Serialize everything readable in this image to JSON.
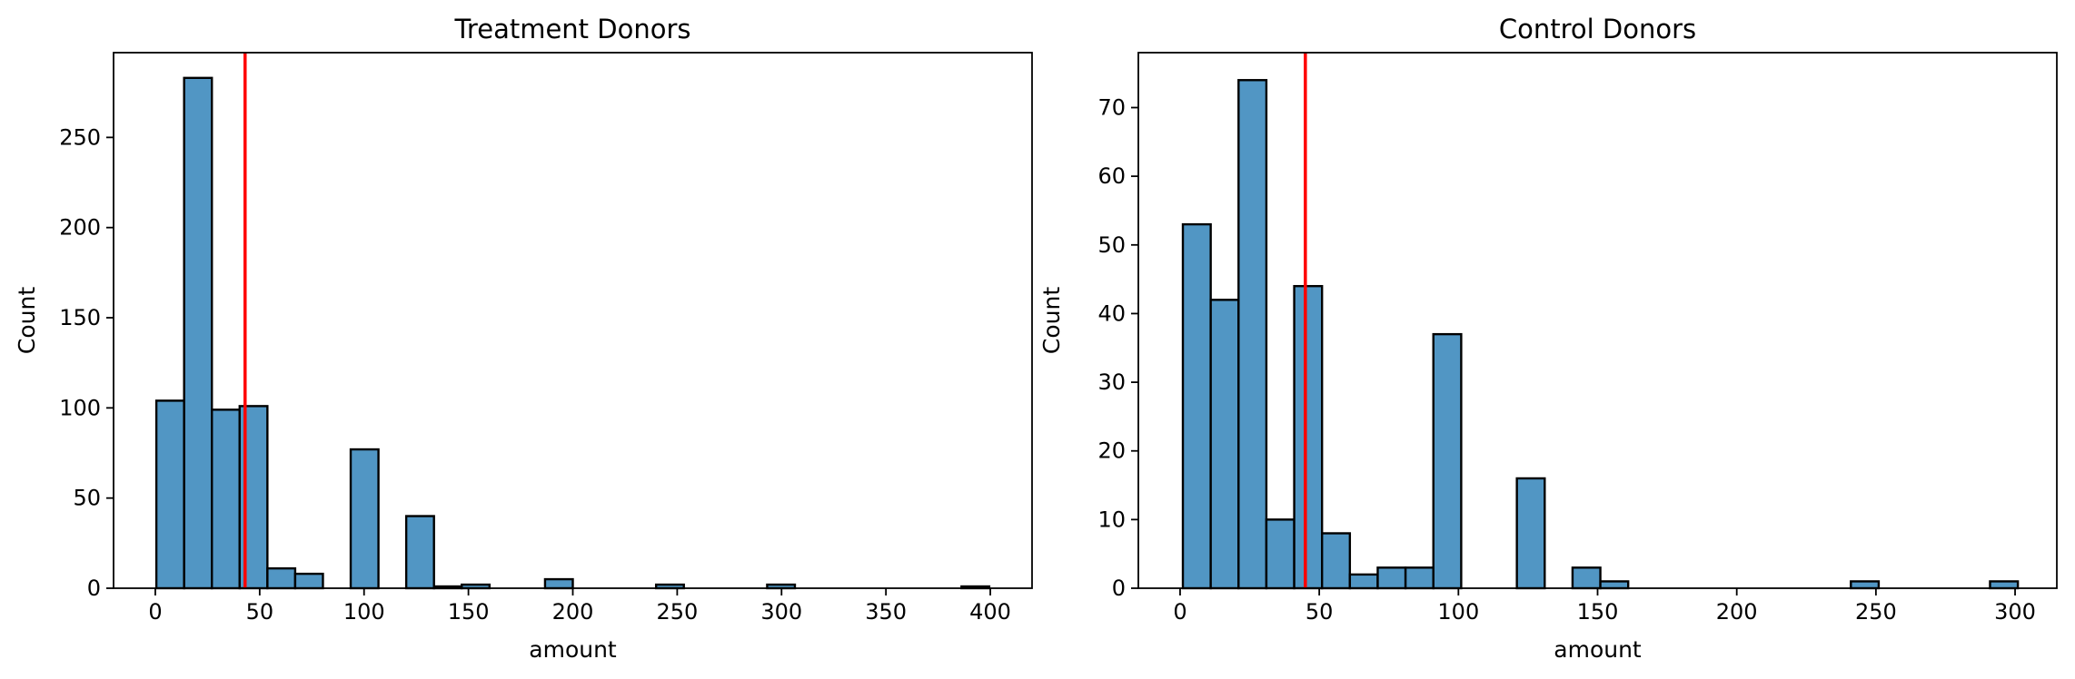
{
  "chart_data": [
    {
      "type": "bar",
      "title": "Treatment Donors",
      "xlabel": "amount",
      "ylabel": "Count",
      "xlim": [
        -20,
        420
      ],
      "ylim": [
        0,
        297
      ],
      "xticks": [
        0,
        50,
        100,
        150,
        200,
        250,
        300,
        350,
        400
      ],
      "yticks": [
        0,
        50,
        100,
        150,
        200,
        250
      ],
      "bin_edges": [
        0.5,
        13.8,
        27.1,
        40.4,
        53.7,
        67.0,
        80.3,
        93.6,
        106.9,
        120.2,
        133.5,
        146.8,
        160.1,
        173.4,
        186.7,
        200.0,
        213.3,
        226.6,
        239.9,
        253.2,
        266.5,
        279.8,
        293.1,
        306.4,
        319.7,
        333.0,
        346.3,
        359.6,
        372.9,
        386.2,
        399.5
      ],
      "values": [
        104,
        283,
        99,
        101,
        11,
        8,
        0,
        77,
        0,
        40,
        1,
        2,
        0,
        0,
        5,
        0,
        0,
        0,
        2,
        0,
        0,
        0,
        2,
        0,
        0,
        0,
        0,
        0,
        0,
        1
      ],
      "mean_line": 43,
      "bar_color": "#5196c4",
      "mean_line_color": "#ff0000"
    },
    {
      "type": "bar",
      "title": "Control Donors",
      "xlabel": "amount",
      "ylabel": "Count",
      "xlim": [
        -15,
        315
      ],
      "ylim": [
        0,
        78
      ],
      "xticks": [
        0,
        50,
        100,
        150,
        200,
        250,
        300
      ],
      "yticks": [
        0,
        10,
        20,
        30,
        40,
        50,
        60,
        70
      ],
      "bin_edges": [
        1,
        11,
        21,
        31,
        41,
        51,
        61,
        71,
        81,
        91,
        101,
        111,
        121,
        131,
        141,
        151,
        161,
        171,
        181,
        191,
        201,
        211,
        221,
        231,
        241,
        251,
        261,
        271,
        281,
        291,
        301
      ],
      "values": [
        53,
        42,
        74,
        10,
        44,
        8,
        2,
        3,
        3,
        37,
        0,
        0,
        16,
        0,
        3,
        1,
        0,
        0,
        0,
        0,
        0,
        0,
        0,
        0,
        1,
        0,
        0,
        0,
        0,
        1
      ],
      "mean_line": 45,
      "bar_color": "#5196c4",
      "mean_line_color": "#ff0000"
    }
  ]
}
